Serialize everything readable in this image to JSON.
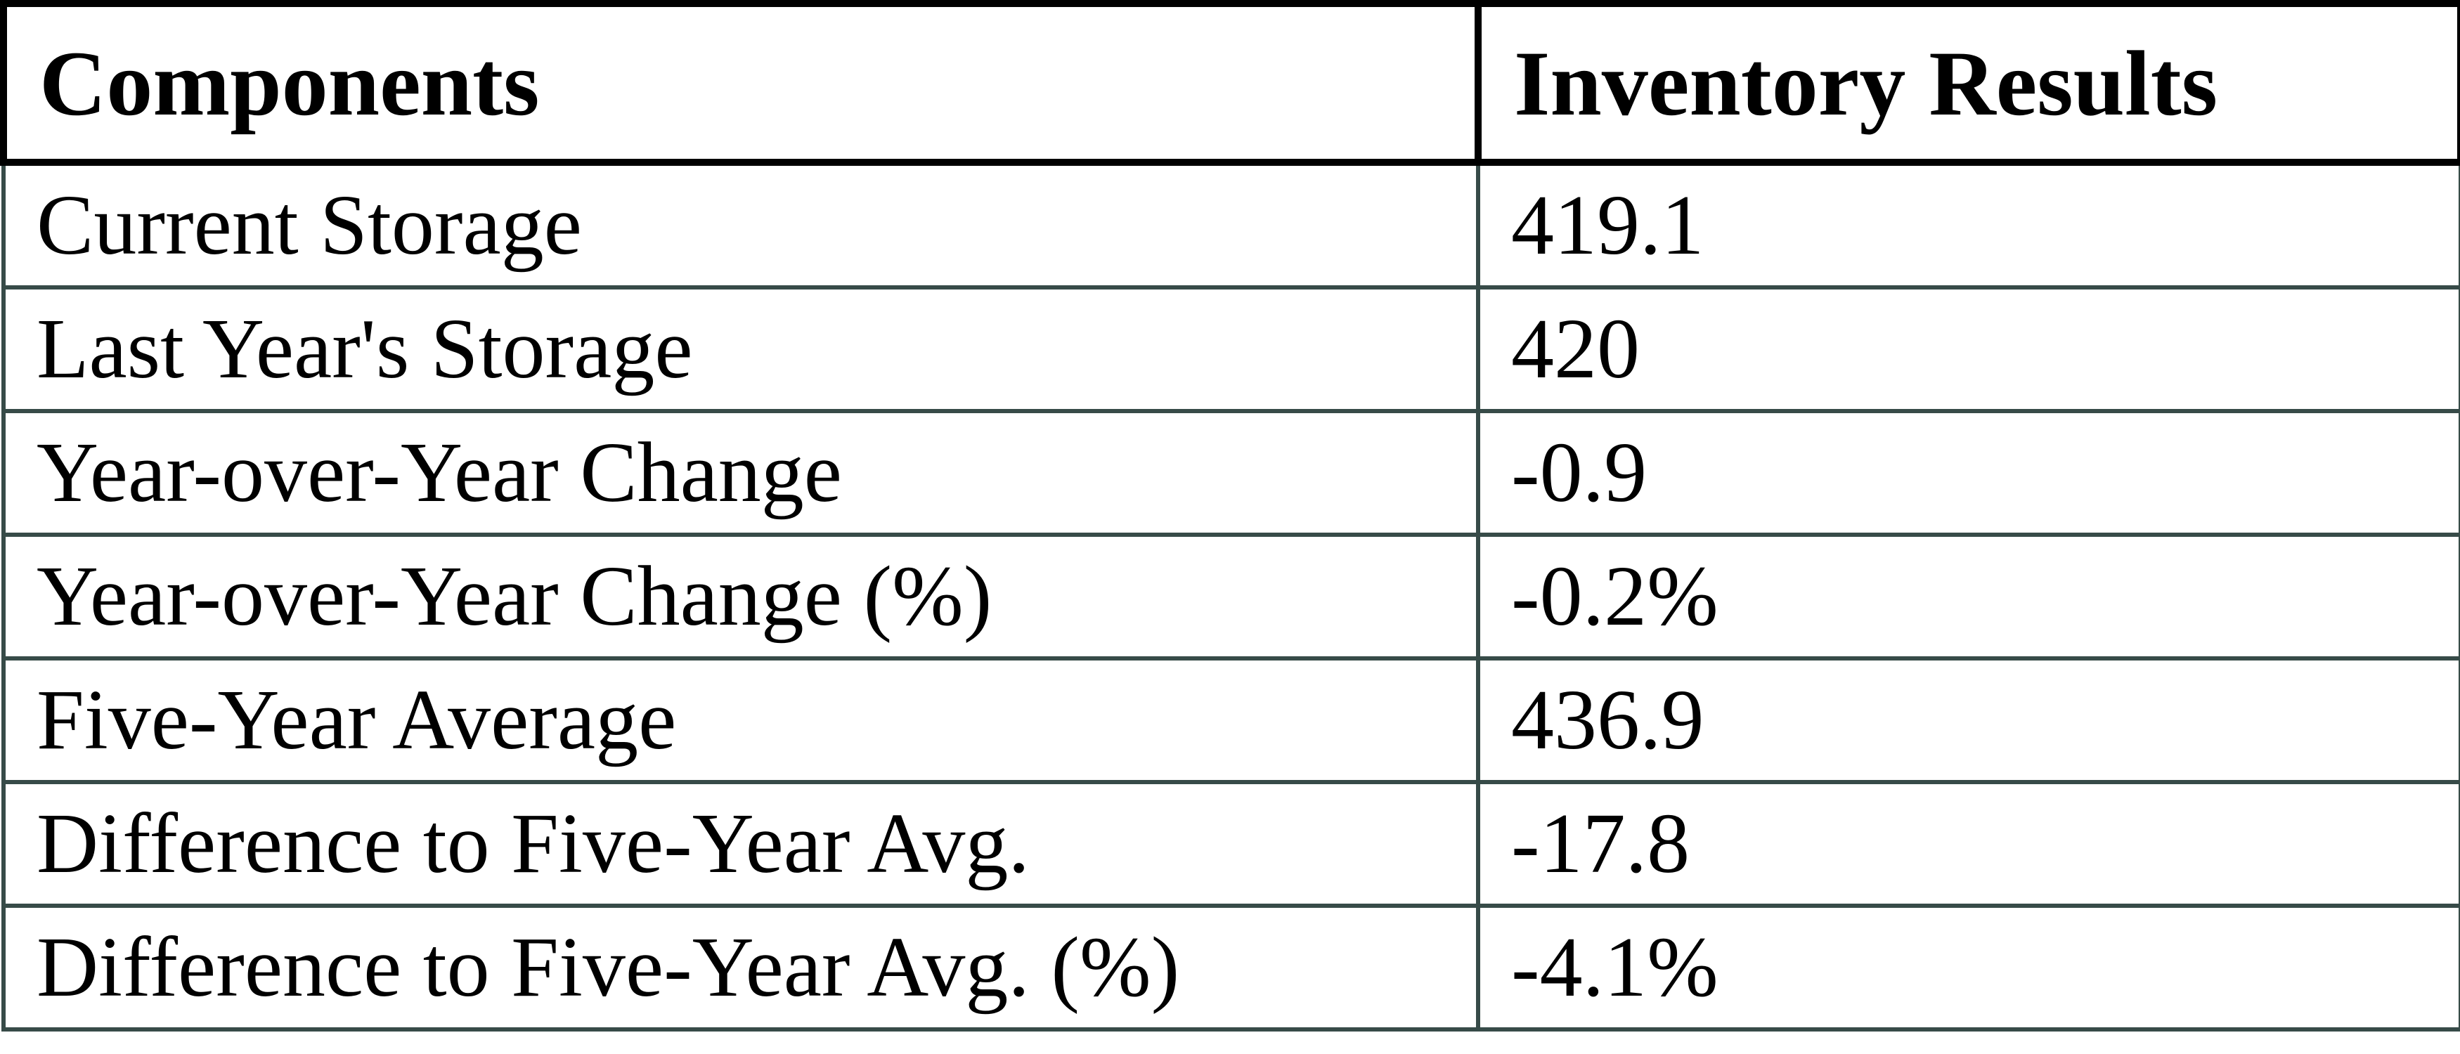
{
  "chart_data": {
    "type": "table",
    "columns": [
      "Components",
      "Inventory Results"
    ],
    "rows": [
      [
        "Current Storage",
        "419.1"
      ],
      [
        "Last Year's Storage",
        "420"
      ],
      [
        "Year-over-Year Change",
        "-0.9"
      ],
      [
        "Year-over-Year Change (%)",
        "-0.2%"
      ],
      [
        "Five-Year Average",
        "436.9"
      ],
      [
        "Difference to Five-Year Avg.",
        "-17.8"
      ],
      [
        "Difference to Five-Year Avg. (%)",
        "-4.1%"
      ]
    ]
  },
  "colors": {
    "header_border": "#000000",
    "body_border": "#374b48",
    "text": "#000000",
    "background": "#ffffff"
  }
}
